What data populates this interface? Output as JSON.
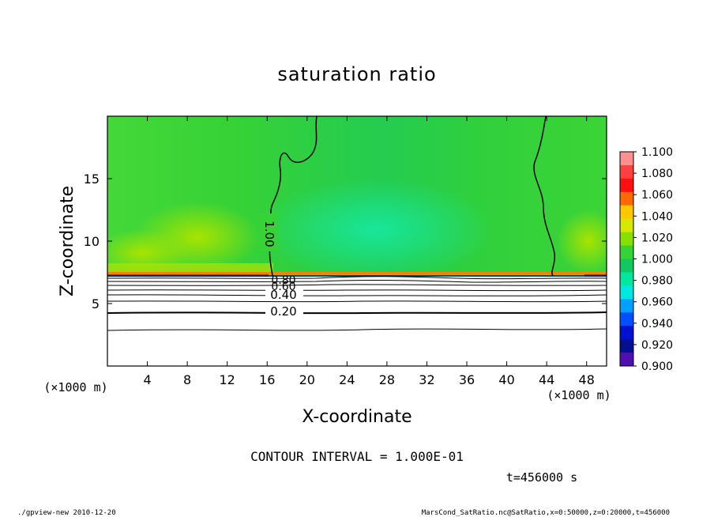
{
  "chart_data": {
    "type": "heatmap",
    "title": "saturation ratio",
    "xlabel": "X-coordinate",
    "ylabel": "Z-coordinate",
    "x_unit_left": "(×1000 m)",
    "x_unit_right": "(×1000 m)",
    "xlim": [
      0,
      50
    ],
    "ylim": [
      0,
      20
    ],
    "x_ticks": [
      4,
      8,
      12,
      16,
      20,
      24,
      28,
      32,
      36,
      40,
      44,
      48
    ],
    "y_ticks": [
      5,
      10,
      15
    ],
    "colorbar": {
      "ticks": [
        "1.100",
        "1.080",
        "1.060",
        "1.040",
        "1.020",
        "1.000",
        "0.980",
        "0.960",
        "0.940",
        "0.920",
        "0.900"
      ],
      "colors": [
        "#ff9090",
        "#ff4040",
        "#ff1010",
        "#ff6a00",
        "#ffc800",
        "#d7e800",
        "#88e000",
        "#36d236",
        "#12c860",
        "#00e8a0",
        "#00e8e0",
        "#00a0ff",
        "#0050ff",
        "#0010d0",
        "#001090",
        "#5010b0"
      ]
    },
    "contour_labels": [
      "1.00",
      "0.20",
      "0.40",
      "0.60",
      "0.80"
    ],
    "contour_interval_text": "CONTOUR INTERVAL = 1.000E-01",
    "time_text": "t=456000 s"
  },
  "footer": {
    "left": "./gpview-new  2010-12-20",
    "right": "MarsCond_SatRatio.nc@SatRatio,x=0:50000,z=0:20000,t=456000"
  }
}
